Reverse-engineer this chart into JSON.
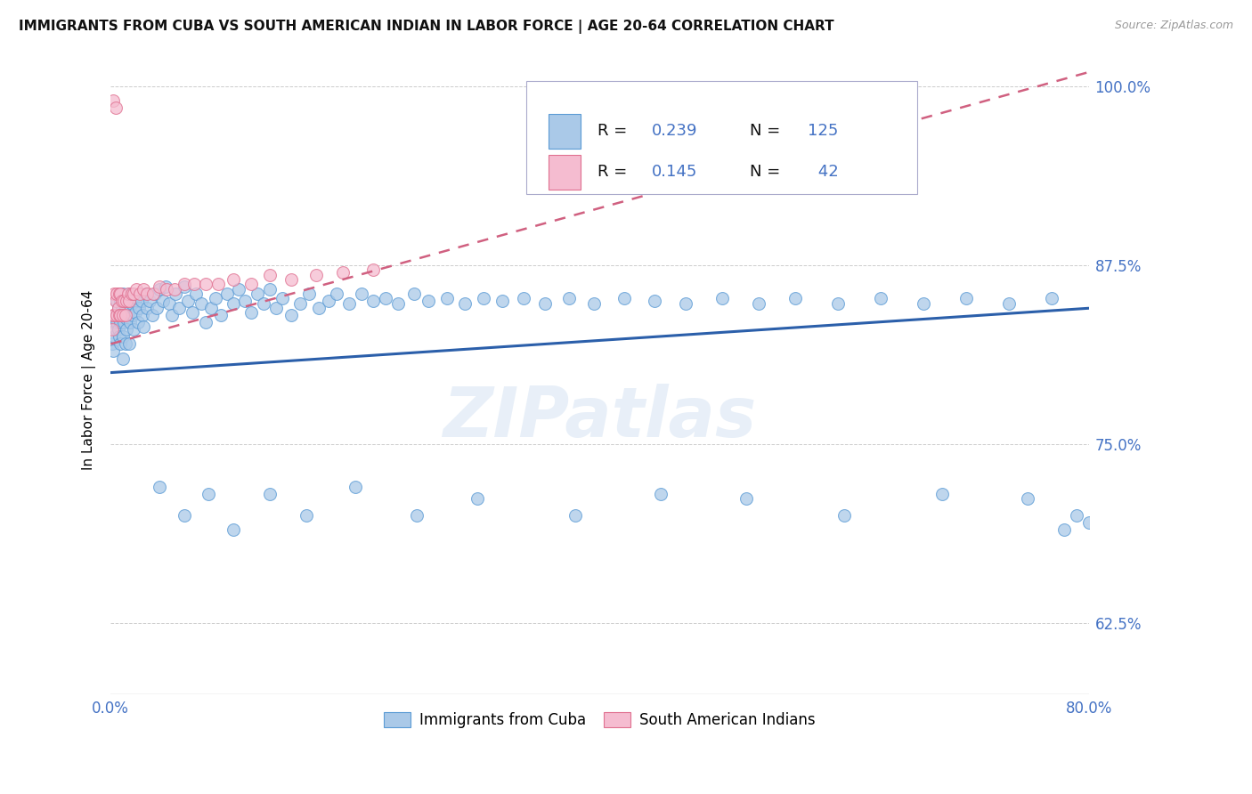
{
  "title": "IMMIGRANTS FROM CUBA VS SOUTH AMERICAN INDIAN IN LABOR FORCE | AGE 20-64 CORRELATION CHART",
  "source": "Source: ZipAtlas.com",
  "ylabel": "In Labor Force | Age 20-64",
  "x_min": 0.0,
  "x_max": 0.8,
  "y_min": 0.575,
  "y_max": 1.015,
  "x_ticks": [
    0.0,
    0.1,
    0.2,
    0.3,
    0.4,
    0.5,
    0.6,
    0.7,
    0.8
  ],
  "y_ticks": [
    0.625,
    0.75,
    0.875,
    1.0
  ],
  "y_tick_labels": [
    "62.5%",
    "75.0%",
    "87.5%",
    "100.0%"
  ],
  "cuba_color": "#aac9e8",
  "cuba_edge_color": "#5b9bd5",
  "sa_color": "#f5bcd0",
  "sa_edge_color": "#e07090",
  "trendline_cuba_color": "#2b5faa",
  "trendline_sa_color": "#d06080",
  "R_cuba": 0.239,
  "N_cuba": 125,
  "R_sa": 0.145,
  "N_sa": 42,
  "watermark": "ZIPatlas",
  "cuba_x": [
    0.001,
    0.002,
    0.003,
    0.003,
    0.004,
    0.004,
    0.005,
    0.005,
    0.005,
    0.006,
    0.006,
    0.007,
    0.007,
    0.007,
    0.008,
    0.008,
    0.008,
    0.009,
    0.009,
    0.01,
    0.01,
    0.01,
    0.011,
    0.011,
    0.012,
    0.012,
    0.013,
    0.013,
    0.014,
    0.015,
    0.015,
    0.016,
    0.017,
    0.018,
    0.019,
    0.02,
    0.021,
    0.022,
    0.023,
    0.025,
    0.026,
    0.027,
    0.029,
    0.03,
    0.032,
    0.034,
    0.036,
    0.038,
    0.04,
    0.043,
    0.045,
    0.048,
    0.05,
    0.053,
    0.056,
    0.06,
    0.063,
    0.067,
    0.07,
    0.074,
    0.078,
    0.082,
    0.086,
    0.09,
    0.095,
    0.1,
    0.105,
    0.11,
    0.115,
    0.12,
    0.125,
    0.13,
    0.135,
    0.14,
    0.148,
    0.155,
    0.162,
    0.17,
    0.178,
    0.185,
    0.195,
    0.205,
    0.215,
    0.225,
    0.235,
    0.248,
    0.26,
    0.275,
    0.29,
    0.305,
    0.32,
    0.338,
    0.355,
    0.375,
    0.395,
    0.42,
    0.445,
    0.47,
    0.5,
    0.53,
    0.56,
    0.595,
    0.63,
    0.665,
    0.7,
    0.735,
    0.77,
    0.04,
    0.06,
    0.08,
    0.1,
    0.13,
    0.16,
    0.2,
    0.25,
    0.3,
    0.38,
    0.45,
    0.52,
    0.6,
    0.68,
    0.75,
    0.78,
    0.79,
    0.8
  ],
  "cuba_y": [
    0.82,
    0.815,
    0.835,
    0.825,
    0.84,
    0.83,
    0.85,
    0.84,
    0.835,
    0.845,
    0.83,
    0.855,
    0.84,
    0.825,
    0.85,
    0.835,
    0.82,
    0.84,
    0.845,
    0.855,
    0.825,
    0.81,
    0.84,
    0.835,
    0.845,
    0.82,
    0.838,
    0.83,
    0.842,
    0.855,
    0.82,
    0.835,
    0.848,
    0.84,
    0.83,
    0.842,
    0.852,
    0.835,
    0.845,
    0.85,
    0.84,
    0.832,
    0.855,
    0.845,
    0.85,
    0.84,
    0.855,
    0.845,
    0.858,
    0.85,
    0.86,
    0.848,
    0.84,
    0.855,
    0.845,
    0.86,
    0.85,
    0.842,
    0.855,
    0.848,
    0.835,
    0.845,
    0.852,
    0.84,
    0.855,
    0.848,
    0.858,
    0.85,
    0.842,
    0.855,
    0.848,
    0.858,
    0.845,
    0.852,
    0.84,
    0.848,
    0.855,
    0.845,
    0.85,
    0.855,
    0.848,
    0.855,
    0.85,
    0.852,
    0.848,
    0.855,
    0.85,
    0.852,
    0.848,
    0.852,
    0.85,
    0.852,
    0.848,
    0.852,
    0.848,
    0.852,
    0.85,
    0.848,
    0.852,
    0.848,
    0.852,
    0.848,
    0.852,
    0.848,
    0.852,
    0.848,
    0.852,
    0.72,
    0.7,
    0.715,
    0.69,
    0.715,
    0.7,
    0.72,
    0.7,
    0.712,
    0.7,
    0.715,
    0.712,
    0.7,
    0.715,
    0.712,
    0.69,
    0.7,
    0.695
  ],
  "sa_x": [
    0.001,
    0.002,
    0.003,
    0.003,
    0.004,
    0.005,
    0.005,
    0.006,
    0.007,
    0.007,
    0.008,
    0.008,
    0.009,
    0.01,
    0.011,
    0.012,
    0.013,
    0.014,
    0.015,
    0.017,
    0.019,
    0.021,
    0.024,
    0.027,
    0.03,
    0.035,
    0.04,
    0.046,
    0.052,
    0.06,
    0.068,
    0.078,
    0.088,
    0.1,
    0.115,
    0.13,
    0.148,
    0.168,
    0.19,
    0.215,
    0.002,
    0.004
  ],
  "sa_y": [
    0.83,
    0.84,
    0.855,
    0.84,
    0.85,
    0.84,
    0.855,
    0.845,
    0.855,
    0.84,
    0.855,
    0.84,
    0.85,
    0.84,
    0.85,
    0.84,
    0.85,
    0.855,
    0.85,
    0.855,
    0.855,
    0.858,
    0.855,
    0.858,
    0.855,
    0.855,
    0.86,
    0.858,
    0.858,
    0.862,
    0.862,
    0.862,
    0.862,
    0.865,
    0.862,
    0.868,
    0.865,
    0.868,
    0.87,
    0.872,
    0.99,
    0.985
  ],
  "cuba_trend_x0": 0.0,
  "cuba_trend_x1": 0.8,
  "cuba_trend_y0": 0.8,
  "cuba_trend_y1": 0.845,
  "sa_trend_x0": 0.0,
  "sa_trend_x1": 0.8,
  "sa_trend_y0": 0.82,
  "sa_trend_y1": 1.01
}
